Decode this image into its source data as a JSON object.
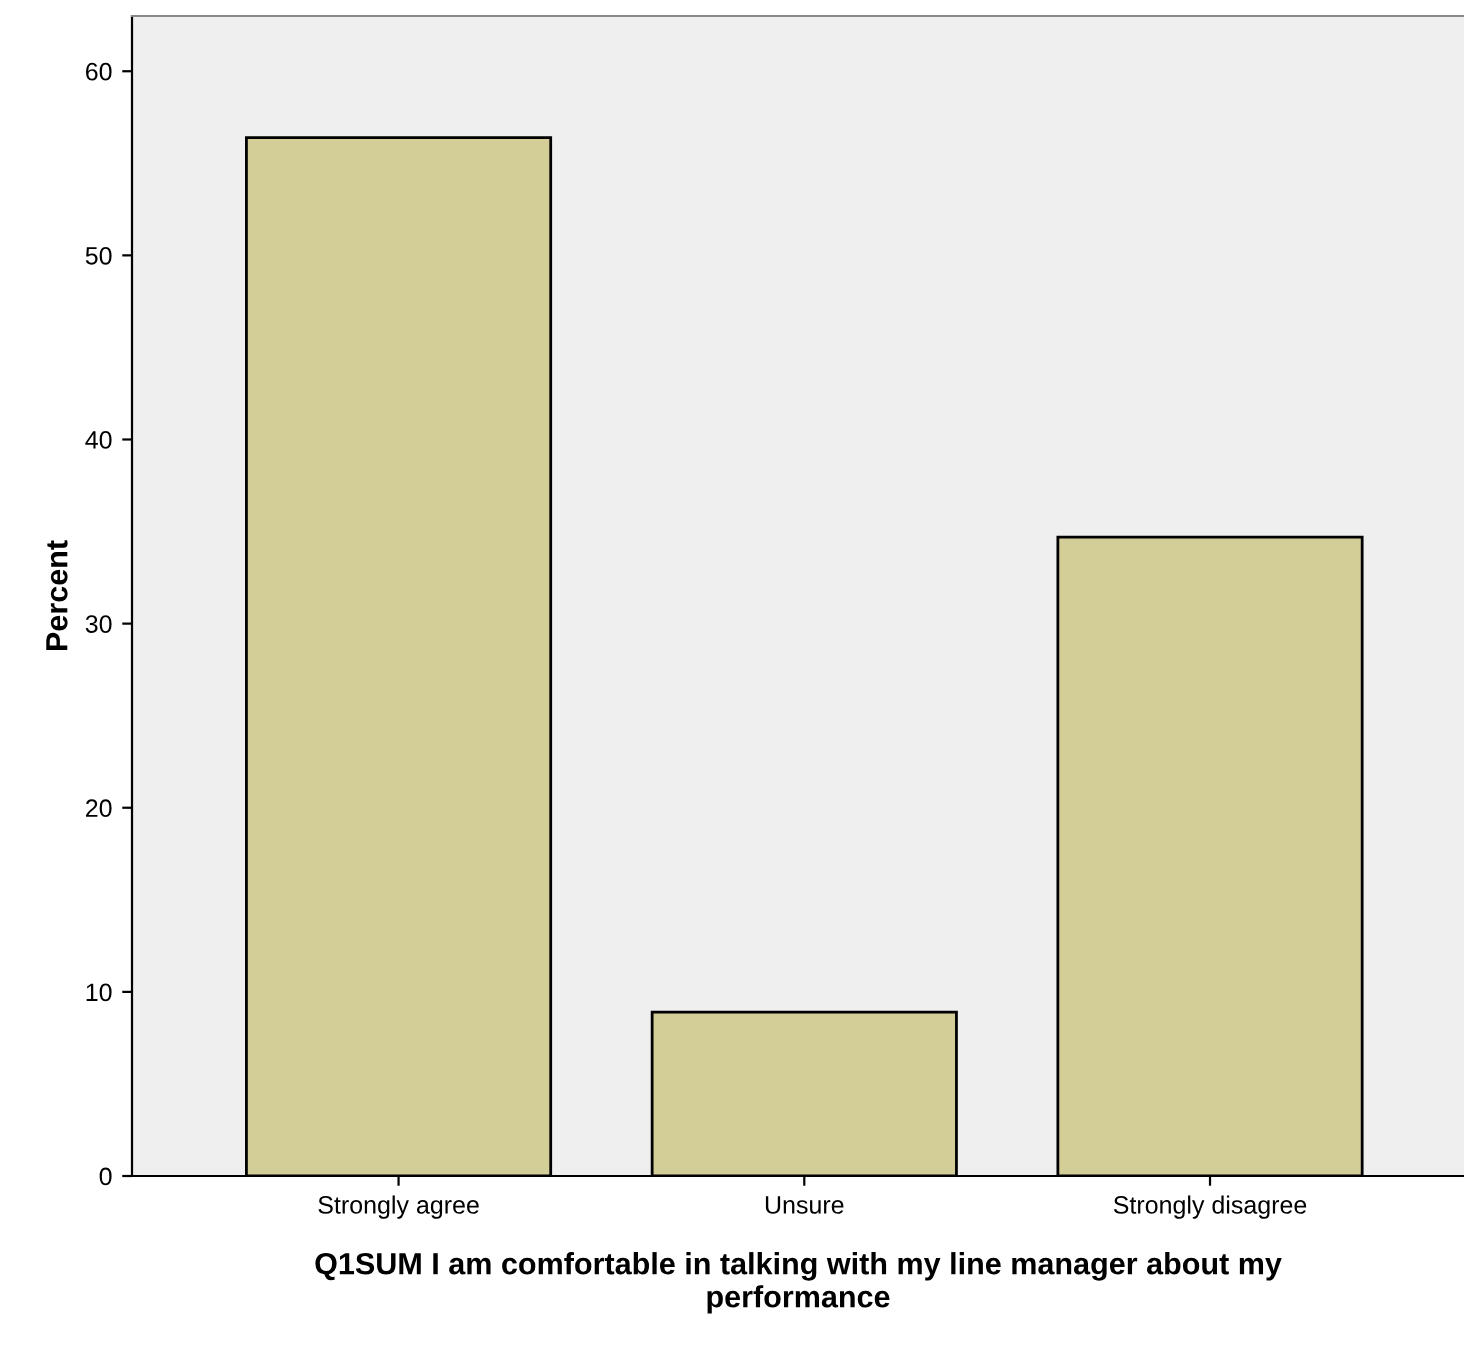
{
  "chart_data": {
    "type": "bar",
    "xlabel": "Q1SUM I am comfortable in talking with my line manager about my\nperformance",
    "ylabel": "Percent",
    "categories": [
      "Strongly agree",
      "Unsure",
      "Strongly disagree"
    ],
    "values": [
      56.4,
      8.9,
      34.7
    ],
    "color": "#d3cd98",
    "ylim": [
      0,
      63
    ],
    "yticks": [
      0,
      10,
      20,
      30,
      40,
      50,
      60
    ],
    "grid": false
  }
}
